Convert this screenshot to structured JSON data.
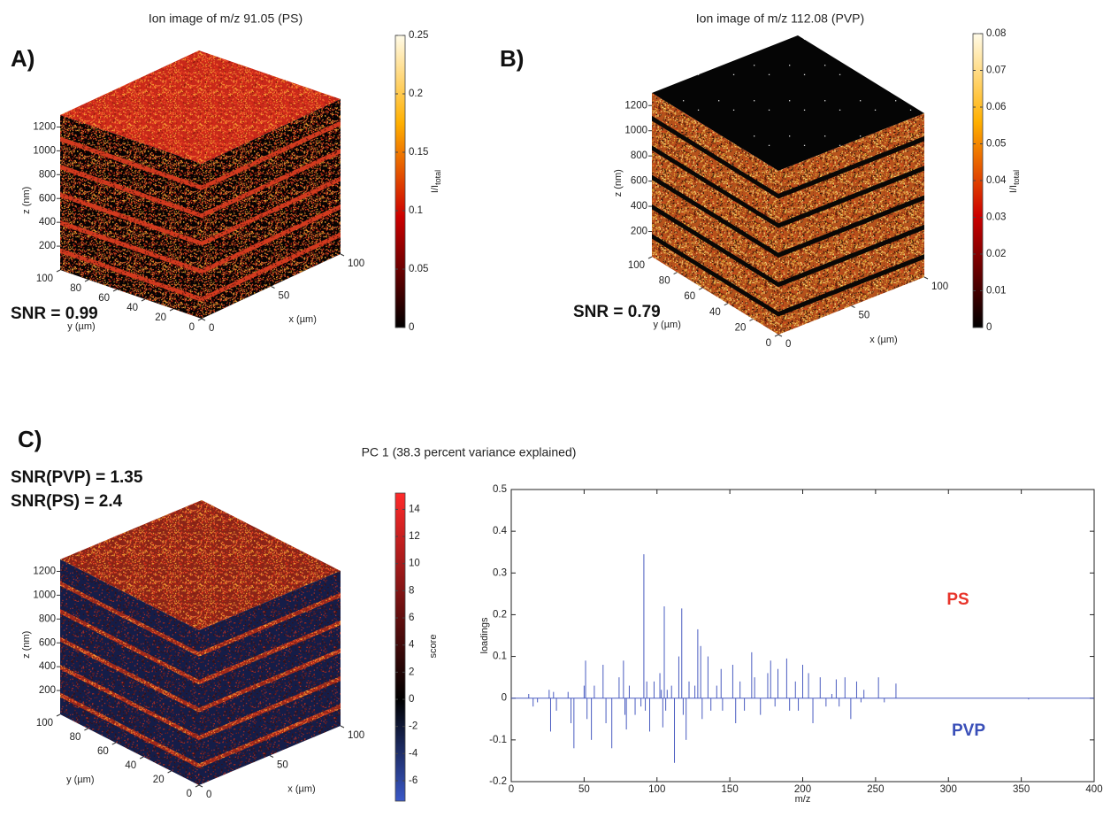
{
  "chart_data": [
    {
      "type": "cube",
      "panel": "A)",
      "title": "Ion image of m/z 91.05 (PS)",
      "snr": [
        "SNR = 0.99"
      ],
      "xlabel": "x (µm)",
      "ylabel": "y (µm)",
      "zlabel": "z (nm)",
      "xlim": [
        0,
        100
      ],
      "xticks": [
        0,
        50,
        100
      ],
      "ylim": [
        0,
        100
      ],
      "yticks": [
        0,
        20,
        40,
        60,
        80,
        100
      ],
      "zlim": [
        0,
        1300
      ],
      "zticks": [
        200,
        400,
        600,
        800,
        1000,
        1200
      ],
      "top_color": "#c8281a",
      "side_color": "#070303",
      "stripe_color": "#d23a1e",
      "colorbar": {
        "label": "I/I",
        "label_sub": "total",
        "colormap": "hot",
        "lim": [
          0,
          0.25
        ],
        "ticks": [
          0,
          0.05,
          0.1,
          0.15,
          0.2,
          0.25
        ]
      }
    },
    {
      "type": "cube",
      "panel": "B)",
      "title": "Ion image of m/z 112.08 (PVP)",
      "snr": [
        "SNR = 0.79"
      ],
      "xlabel": "x (µm)",
      "ylabel": "y (µm)",
      "zlabel": "z (nm)",
      "xlim": [
        0,
        100
      ],
      "xticks": [
        0,
        50,
        100
      ],
      "ylim": [
        0,
        100
      ],
      "yticks": [
        0,
        20,
        40,
        60,
        80,
        100
      ],
      "zlim": [
        0,
        1300
      ],
      "zticks": [
        200,
        400,
        600,
        800,
        1000,
        1200
      ],
      "top_color": "#050505",
      "side_color": "#b5521c",
      "stripe_color": "#0a0806",
      "colorbar": {
        "label": "I/I",
        "label_sub": "total",
        "colormap": "hot",
        "lim": [
          0,
          0.08
        ],
        "ticks": [
          0,
          0.01,
          0.02,
          0.03,
          0.04,
          0.05,
          0.06,
          0.07,
          0.08
        ]
      }
    },
    {
      "type": "cube",
      "panel": "C)",
      "snr": [
        "SNR(PVP) = 1.35",
        "SNR(PS) = 2.4"
      ],
      "xlabel": "x (µm)",
      "ylabel": "y (µm)",
      "zlabel": "z (nm)",
      "xlim": [
        0,
        100
      ],
      "xticks": [
        0,
        50,
        100
      ],
      "ylim": [
        0,
        100
      ],
      "yticks": [
        0,
        20,
        40,
        60,
        80,
        100
      ],
      "zlim": [
        0,
        1300
      ],
      "zticks": [
        200,
        400,
        600,
        800,
        1000,
        1200
      ],
      "top_color": "#8a2418",
      "side_color": "#151d48",
      "stripe_color": "#9a2a1c",
      "colorbar": {
        "label": "score",
        "colormap": "bluered",
        "lim": [
          -7.5,
          15.2
        ],
        "ticks": [
          -6,
          -4,
          -2,
          0,
          2,
          4,
          6,
          8,
          10,
          12,
          14
        ]
      }
    },
    {
      "type": "stem",
      "title": "PC 1 (38.3 percent variance explained)",
      "xlabel": "m/z",
      "ylabel": "loadings",
      "xlim": [
        0,
        400
      ],
      "xticks": [
        0,
        50,
        100,
        150,
        200,
        250,
        300,
        350,
        400
      ],
      "ylim": [
        -0.2,
        0.5
      ],
      "yticks": [
        -0.2,
        -0.1,
        0,
        0.1,
        0.2,
        0.3,
        0.4,
        0.5
      ],
      "color": "#4a5cc0",
      "annotations": [
        {
          "text": "PS",
          "color": "#e8342a"
        },
        {
          "text": "PVP",
          "color": "#3a4fb8"
        }
      ],
      "x": [
        12,
        15,
        18,
        26,
        27,
        29,
        31,
        39,
        41,
        43,
        50,
        51,
        52,
        55,
        57,
        63,
        65,
        69,
        74,
        77,
        78,
        79,
        81,
        85,
        89,
        91,
        92,
        93,
        95,
        98,
        102,
        103,
        104,
        105,
        106,
        107,
        110,
        112,
        115,
        117,
        118,
        120,
        122,
        126,
        128,
        130,
        131,
        135,
        137,
        141,
        144,
        145,
        152,
        154,
        157,
        160,
        165,
        167,
        171,
        176,
        178,
        181,
        183,
        189,
        191,
        195,
        197,
        200,
        204,
        207,
        212,
        216,
        220,
        223,
        225,
        229,
        233,
        237,
        240,
        242,
        252,
        256,
        264,
        355
      ],
      "values": [
        0.01,
        -0.02,
        -0.01,
        0.02,
        -0.08,
        0.015,
        -0.03,
        0.015,
        -0.06,
        -0.12,
        0.03,
        0.09,
        -0.05,
        -0.1,
        0.03,
        0.08,
        -0.06,
        -0.12,
        0.05,
        0.09,
        -0.04,
        -0.075,
        0.03,
        -0.04,
        -0.02,
        0.345,
        -0.03,
        0.04,
        -0.08,
        0.04,
        0.06,
        0.02,
        -0.07,
        0.22,
        -0.03,
        0.02,
        0.03,
        -0.155,
        0.1,
        0.215,
        -0.04,
        -0.1,
        0.04,
        0.03,
        0.165,
        0.125,
        -0.05,
        0.1,
        -0.03,
        0.03,
        0.07,
        -0.03,
        0.08,
        -0.06,
        0.04,
        -0.03,
        0.11,
        0.05,
        -0.04,
        0.06,
        0.09,
        -0.02,
        0.07,
        0.095,
        -0.03,
        0.04,
        -0.03,
        0.08,
        0.06,
        -0.06,
        0.05,
        -0.02,
        0.01,
        0.045,
        -0.02,
        0.05,
        -0.05,
        0.04,
        -0.01,
        0.02,
        0.05,
        -0.01,
        0.035,
        -0.003
      ]
    }
  ]
}
